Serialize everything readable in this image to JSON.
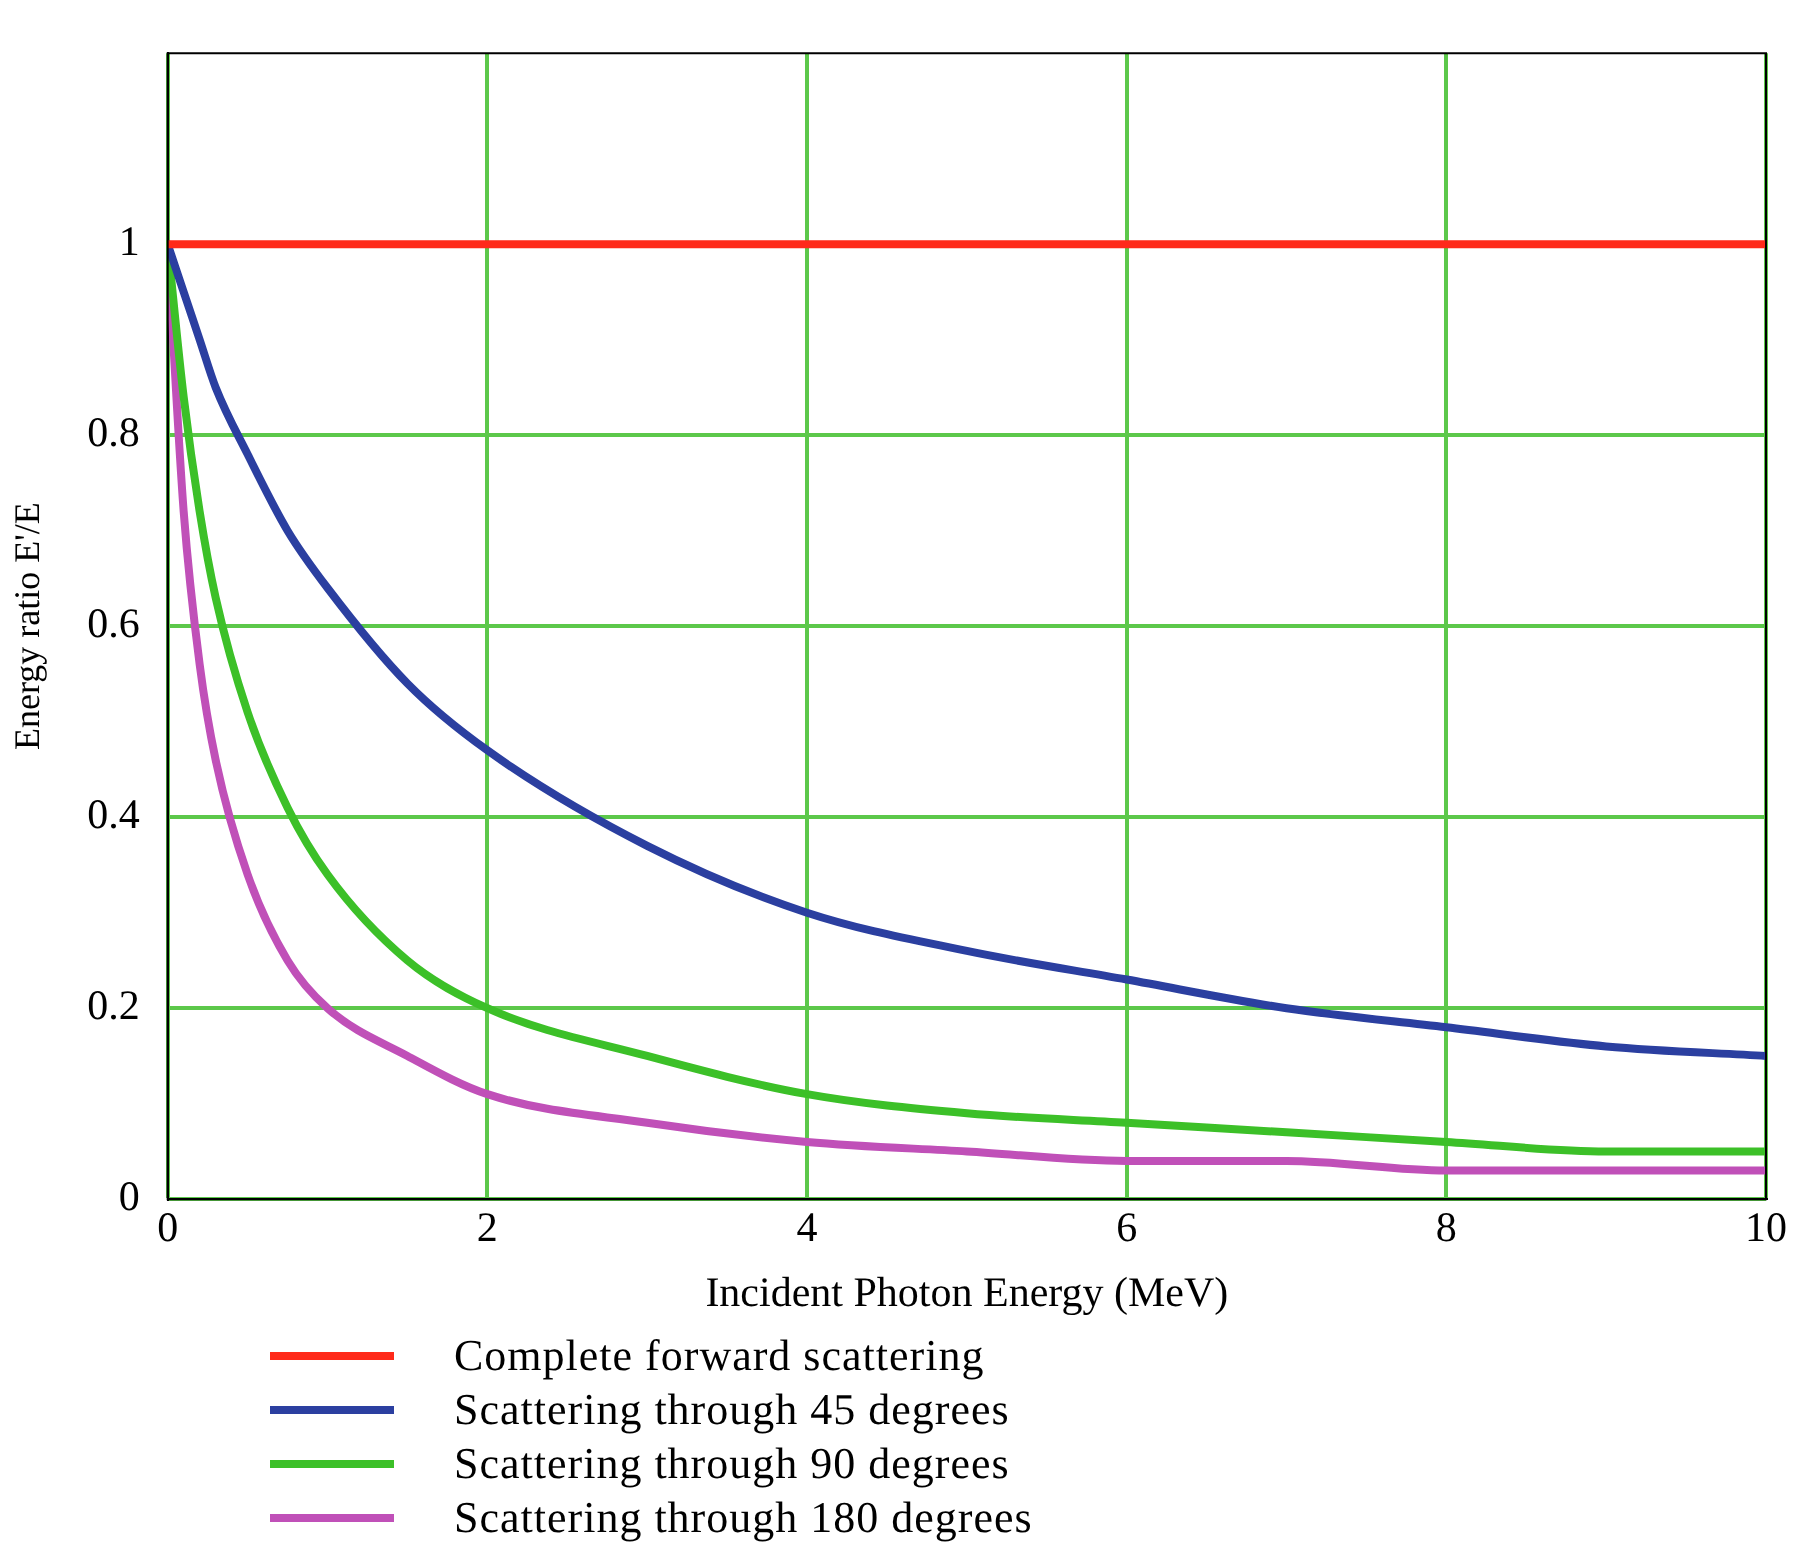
{
  "chart_data": {
    "type": "line",
    "xlabel": "Incident Photon Energy (MeV)",
    "ylabel": "Energy ratio E'/E",
    "xlim": [
      0,
      10
    ],
    "xticks": [
      0,
      2,
      4,
      6,
      8,
      10
    ],
    "ylim": [
      0,
      1.2
    ],
    "yticks": [
      0,
      0.2,
      0.4,
      0.6,
      0.8,
      1
    ],
    "grid": true,
    "legend": "bottom",
    "marker": "none",
    "line_style": "solid",
    "series": [
      {
        "name": "Complete forward scattering",
        "color": "#ff2a1a",
        "x": [
          0,
          10
        ],
        "values": [
          1,
          1
        ]
      },
      {
        "name": "Scattering through 45 degrees",
        "color": "#2b3fa0",
        "x": [
          0,
          0.1,
          0.2,
          0.3,
          0.5,
          0.75,
          1,
          1.5,
          2,
          3,
          4,
          5,
          6,
          7,
          8,
          9,
          10
        ],
        "values": [
          1,
          0.95,
          0.9,
          0.85,
          0.78,
          0.7,
          0.64,
          0.54,
          0.47,
          0.37,
          0.3,
          0.26,
          0.23,
          0.2,
          0.18,
          0.16,
          0.15
        ]
      },
      {
        "name": "Scattering through 90 degrees",
        "color": "#3cc028",
        "x": [
          0,
          0.1,
          0.2,
          0.3,
          0.5,
          0.75,
          1,
          1.5,
          2,
          3,
          4,
          5,
          6,
          7,
          8,
          9,
          10
        ],
        "values": [
          1,
          0.84,
          0.72,
          0.63,
          0.51,
          0.41,
          0.34,
          0.25,
          0.2,
          0.15,
          0.11,
          0.09,
          0.08,
          0.07,
          0.06,
          0.05,
          0.05
        ]
      },
      {
        "name": "Scattering through 180 degrees",
        "color": "#c050b8",
        "x": [
          0,
          0.1,
          0.2,
          0.3,
          0.5,
          0.75,
          1,
          1.5,
          2,
          3,
          4,
          5,
          6,
          7,
          8,
          9,
          10
        ],
        "values": [
          1,
          0.72,
          0.56,
          0.46,
          0.34,
          0.25,
          0.2,
          0.15,
          0.11,
          0.08,
          0.06,
          0.05,
          0.04,
          0.04,
          0.03,
          0.03,
          0.03
        ]
      }
    ]
  }
}
